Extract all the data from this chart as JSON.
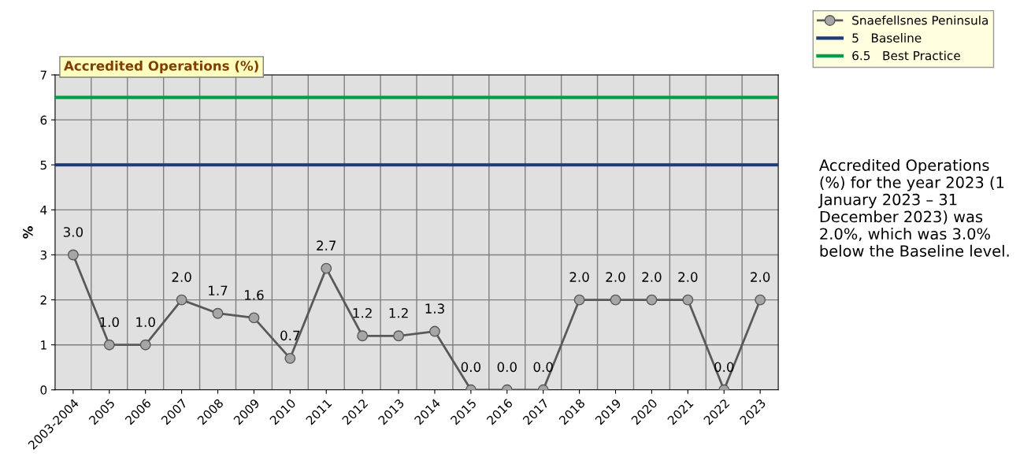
{
  "chart_data": {
    "type": "line",
    "title": "Accredited Operations (%)",
    "ylabel": "%",
    "categories": [
      "2003-2004",
      "2005",
      "2006",
      "2007",
      "2008",
      "2009",
      "2010",
      "2011",
      "2012",
      "2013",
      "2014",
      "2015",
      "2016",
      "2017",
      "2018",
      "2019",
      "2020",
      "2021",
      "2022",
      "2023"
    ],
    "series": [
      {
        "name": "Snaefellsnes Peninsula",
        "color": "#595959",
        "values": [
          3.0,
          1.0,
          1.0,
          2.0,
          1.7,
          1.6,
          0.7,
          2.7,
          1.2,
          1.2,
          1.3,
          0.0,
          0.0,
          0.0,
          2.0,
          2.0,
          2.0,
          2.0,
          0.0,
          2.0
        ],
        "value_labels": [
          "3.0",
          "1.0",
          "1.0",
          "2.0",
          "1.7",
          "1.6",
          "0.7",
          "2.7",
          "1.2",
          "1.2",
          "1.3",
          "0.0",
          "0.0",
          "0.0",
          "2.0",
          "2.0",
          "2.0",
          "2.0",
          "0.0",
          "2.0"
        ]
      }
    ],
    "ref_lines": [
      {
        "axis": "y",
        "value": 5,
        "label": "5   Baseline",
        "color": "#1f3a7a"
      },
      {
        "axis": "y",
        "value": 6.5,
        "label": "6.5   Best Practice",
        "color": "#00a04a"
      }
    ],
    "ylim": [
      0,
      7
    ],
    "yticks": [
      0,
      1,
      2,
      3,
      4,
      5,
      6,
      7
    ],
    "grid": true,
    "legend": "top right",
    "marker": "circle",
    "line_style": "solid",
    "annotations": [
      "Accredited Operations (%) for the year 2023 (1 January 2023 – 31 December 2023) was 2.0%, which was 3.0% below the Baseline level."
    ]
  }
}
